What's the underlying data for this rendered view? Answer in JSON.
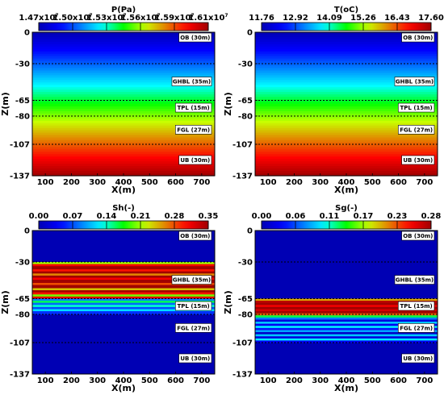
{
  "chart_data": [
    {
      "type": "heatmap",
      "variable": "pressure",
      "title": "P(Pa)",
      "xlabel": "X(m)",
      "ylabel": "Z(m)",
      "xlim": [
        50,
        750
      ],
      "ylim": [
        -137,
        0
      ],
      "x_ticks": [
        "100",
        "200",
        "300",
        "400",
        "500",
        "600",
        "700"
      ],
      "y_ticks": [
        {
          "v": 0,
          "t": "0"
        },
        {
          "v": -30,
          "t": "-30"
        },
        {
          "v": -65,
          "t": "-65"
        },
        {
          "v": -80,
          "t": "-80"
        },
        {
          "v": -107,
          "t": "-107"
        },
        {
          "v": -137,
          "t": "-137"
        }
      ],
      "colorbar_mantissas": [
        "1.47x10",
        "1.50x10",
        "1.53x10",
        "1.56x10",
        "1.59x10",
        "1.61x10"
      ],
      "colorbar_exponent": "7",
      "colorbar_range": [
        14700000,
        16100000
      ],
      "layer_boundaries": [
        -30,
        -65,
        -80,
        -107
      ],
      "layers": [
        {
          "label": "OB (30m)",
          "z": -5
        },
        {
          "label": "GHBL (35m)",
          "z": -47
        },
        {
          "label": "TPL (15m)",
          "z": -72
        },
        {
          "label": "FGL (27m)",
          "z": -93
        },
        {
          "label": "UB (30m)",
          "z": -122
        }
      ],
      "profile": {
        "mode": "linear",
        "values": [
          [
            0,
            14700000
          ],
          [
            -137,
            16100000
          ]
        ]
      }
    },
    {
      "type": "heatmap",
      "variable": "temperature",
      "title": "T(oC)",
      "xlabel": "X(m)",
      "ylabel": "Z(m)",
      "xlim": [
        50,
        750
      ],
      "ylim": [
        -137,
        0
      ],
      "x_ticks": [
        "100",
        "200",
        "300",
        "400",
        "500",
        "600",
        "700"
      ],
      "y_ticks": [
        {
          "v": 0,
          "t": "0"
        },
        {
          "v": -30,
          "t": "-30"
        },
        {
          "v": -65,
          "t": "-65"
        },
        {
          "v": -80,
          "t": "-80"
        },
        {
          "v": -107,
          "t": "-107"
        },
        {
          "v": -137,
          "t": "-137"
        }
      ],
      "colorbar_ticks": [
        "11.76",
        "12.92",
        "14.09",
        "15.26",
        "16.43",
        "17.60"
      ],
      "colorbar_range": [
        11.76,
        17.6
      ],
      "layer_boundaries": [
        -30,
        -65,
        -80,
        -107
      ],
      "layers": [
        {
          "label": "OB (30m)",
          "z": -5
        },
        {
          "label": "GHBL (35m)",
          "z": -47
        },
        {
          "label": "TPL (15m)",
          "z": -72
        },
        {
          "label": "FGL (27m)",
          "z": -93
        },
        {
          "label": "UB (30m)",
          "z": -122
        }
      ],
      "profile": {
        "mode": "linear",
        "values": [
          [
            0,
            11.76
          ],
          [
            -137,
            17.6
          ]
        ]
      }
    },
    {
      "type": "heatmap",
      "variable": "hydrate saturation",
      "title": "Sh(-)",
      "xlabel": "X(m)",
      "ylabel": "Z(m)",
      "xlim": [
        50,
        750
      ],
      "ylim": [
        -137,
        0
      ],
      "x_ticks": [
        "100",
        "200",
        "300",
        "400",
        "500",
        "600",
        "700"
      ],
      "y_ticks": [
        {
          "v": 0,
          "t": "0"
        },
        {
          "v": -30,
          "t": "-30"
        },
        {
          "v": -65,
          "t": "-65"
        },
        {
          "v": -80,
          "t": "-80"
        },
        {
          "v": -107,
          "t": "-107"
        },
        {
          "v": -137,
          "t": "-137"
        }
      ],
      "colorbar_ticks": [
        "0.00",
        "0.07",
        "0.14",
        "0.21",
        "0.28",
        "0.35"
      ],
      "colorbar_range": [
        0,
        0.35
      ],
      "layer_boundaries": [
        -30,
        -65,
        -80,
        -107
      ],
      "layers": [
        {
          "label": "OB (30m)",
          "z": -5
        },
        {
          "label": "GHBL (35m)",
          "z": -47
        },
        {
          "label": "TPL (15m)",
          "z": -72
        },
        {
          "label": "FGL (27m)",
          "z": -93
        },
        {
          "label": "UB (30m)",
          "z": -122
        }
      ],
      "profile": {
        "mode": "bands",
        "background": 0,
        "bands": [
          [
            -30,
            -32,
            0.21
          ],
          [
            -32,
            -34,
            0.31
          ],
          [
            -34,
            -37,
            0.35
          ],
          [
            -37,
            -39,
            0.3
          ],
          [
            -39,
            -41,
            0.35
          ],
          [
            -41,
            -43,
            0.26
          ],
          [
            -43,
            -45,
            0.35
          ],
          [
            -45,
            -47,
            0.31
          ],
          [
            -47,
            -50,
            0.35
          ],
          [
            -50,
            -52,
            0.28
          ],
          [
            -52,
            -55,
            0.35
          ],
          [
            -55,
            -57,
            0.24
          ],
          [
            -57,
            -59,
            0.35
          ],
          [
            -59,
            -61,
            0.3
          ],
          [
            -61,
            -63,
            0.2
          ],
          [
            -63,
            -65,
            0.32
          ],
          [
            -65,
            -67,
            0.09
          ],
          [
            -67,
            -69,
            0.16
          ],
          [
            -69,
            -71,
            0.08
          ],
          [
            -71,
            -73,
            0.14
          ],
          [
            -73,
            -75,
            0.07
          ],
          [
            -75,
            -77,
            0.12
          ],
          [
            -77,
            -80,
            0.06
          ]
        ]
      }
    },
    {
      "type": "heatmap",
      "variable": "gas saturation",
      "title": "Sg(-)",
      "xlabel": "X(m)",
      "ylabel": "Z(m)",
      "xlim": [
        50,
        750
      ],
      "ylim": [
        -137,
        0
      ],
      "x_ticks": [
        "100",
        "200",
        "300",
        "400",
        "500",
        "600",
        "700"
      ],
      "y_ticks": [
        {
          "v": 0,
          "t": "0"
        },
        {
          "v": -30,
          "t": "-30"
        },
        {
          "v": -65,
          "t": "-65"
        },
        {
          "v": -80,
          "t": "-80"
        },
        {
          "v": -107,
          "t": "-107"
        },
        {
          "v": -137,
          "t": "-137"
        }
      ],
      "colorbar_ticks": [
        "0.00",
        "0.06",
        "0.11",
        "0.17",
        "0.23",
        "0.28"
      ],
      "colorbar_range": [
        0,
        0.28
      ],
      "layer_boundaries": [
        -30,
        -65,
        -80,
        -107
      ],
      "layers": [
        {
          "label": "OB (30m)",
          "z": -5
        },
        {
          "label": "GHBL (35m)",
          "z": -47
        },
        {
          "label": "TPL (15m)",
          "z": -72
        },
        {
          "label": "FGL (27m)",
          "z": -93
        },
        {
          "label": "UB (30m)",
          "z": -122
        }
      ],
      "profile": {
        "mode": "bands",
        "background": 0,
        "bands": [
          [
            -65,
            -67,
            0.2
          ],
          [
            -67,
            -69,
            0.27
          ],
          [
            -69,
            -71,
            0.28
          ],
          [
            -71,
            -73,
            0.25
          ],
          [
            -73,
            -75,
            0.28
          ],
          [
            -75,
            -77,
            0.26
          ],
          [
            -77,
            -79,
            0.28
          ],
          [
            -79,
            -81,
            0.22
          ],
          [
            -81,
            -83,
            0.13
          ],
          [
            -83,
            -85,
            0.07
          ],
          [
            -85,
            -87,
            0.02
          ],
          [
            -87,
            -89,
            0.09
          ],
          [
            -89,
            -91,
            0.03
          ],
          [
            -91,
            -93,
            0.1
          ],
          [
            -93,
            -95,
            0.04
          ],
          [
            -95,
            -97,
            0.08
          ],
          [
            -97,
            -99,
            0.01
          ],
          [
            -99,
            -101,
            0.09
          ],
          [
            -101,
            -103,
            0.02
          ],
          [
            -103,
            -105,
            0.1
          ],
          [
            -105,
            -107,
            0.03
          ]
        ]
      }
    }
  ]
}
